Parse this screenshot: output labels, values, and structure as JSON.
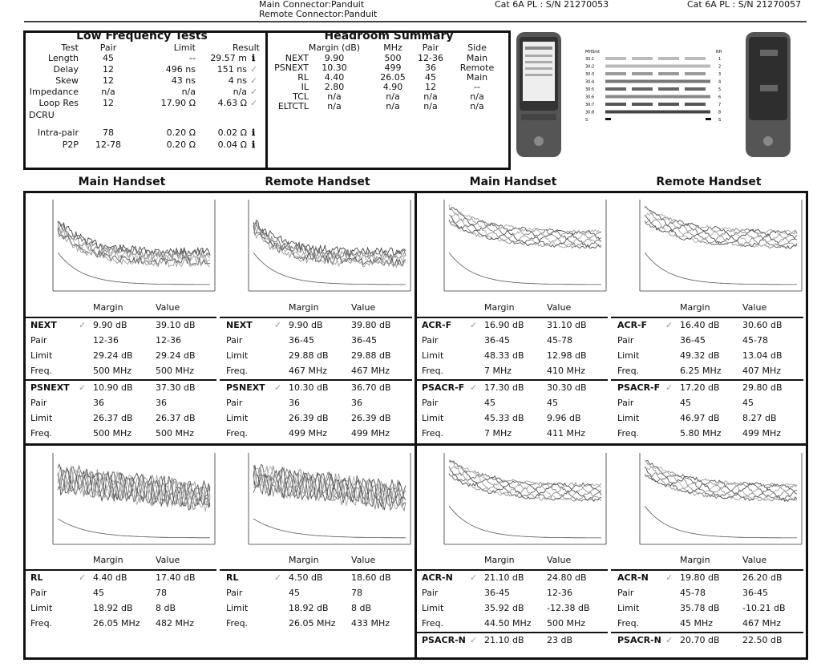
{
  "header": {
    "main_connector": "Main Connector:Panduit",
    "remote_connector": "Remote Connector:Panduit",
    "main_sn": "Cat 6A PL : S/N 21270053",
    "remote_sn": "Cat 6A PL : S/N 21270057"
  },
  "low_freq": {
    "title": "Low Frequency Tests",
    "cols": [
      "Test",
      "Pair",
      "Limit",
      "Result"
    ],
    "rows": [
      {
        "test": "Length",
        "pair": "45",
        "limit": "--",
        "result": "29.57 m",
        "icon": "info"
      },
      {
        "test": "Delay",
        "pair": "12",
        "limit": "496 ns",
        "result": "151 ns",
        "icon": "check"
      },
      {
        "test": "Skew",
        "pair": "12",
        "limit": "43 ns",
        "result": "4 ns",
        "icon": "check"
      },
      {
        "test": "Impedance",
        "pair": "n/a",
        "limit": "n/a",
        "result": "n/a",
        "icon": "check"
      },
      {
        "test": "Loop Res",
        "pair": "12",
        "limit": "17.90 Ω",
        "result": "4.63 Ω",
        "icon": "check"
      }
    ],
    "dcru_label": "DCRU",
    "dcru_rows": [
      {
        "test": "Intra-pair",
        "pair": "78",
        "limit": "0.20 Ω",
        "result": "0.02 Ω",
        "icon": "info"
      },
      {
        "test": "P2P",
        "pair": "12-78",
        "limit": "0.20 Ω",
        "result": "0.04 Ω",
        "icon": "info"
      }
    ]
  },
  "headroom": {
    "title": "Headroom Summary",
    "cols": [
      "Margin (dB)",
      "MHz",
      "Pair",
      "Side"
    ],
    "rows": [
      {
        "test": "NEXT",
        "margin": "9.90",
        "mhz": "500",
        "pair": "12-36",
        "side": "Main"
      },
      {
        "test": "PSNEXT",
        "margin": "10.30",
        "mhz": "499",
        "pair": "36",
        "side": "Remote"
      },
      {
        "test": "RL",
        "margin": "4.40",
        "mhz": "26.05",
        "pair": "45",
        "side": "Main"
      },
      {
        "test": "IL",
        "margin": "2.80",
        "mhz": "4.90",
        "pair": "12",
        "side": "--"
      },
      {
        "test": "TCL",
        "margin": "n/a",
        "mhz": "n/a",
        "pair": "n/a",
        "side": "n/a"
      },
      {
        "test": "ELTCTL",
        "margin": "n/a",
        "mhz": "n/a",
        "pair": "n/a",
        "side": "n/a"
      }
    ]
  },
  "wiremap": {
    "left_head": "MHSmt",
    "right_head": "RH",
    "rows": [
      {
        "l": "30:1",
        "r": "1"
      },
      {
        "l": "30:2",
        "r": "2"
      },
      {
        "l": "30:3",
        "r": "3"
      },
      {
        "l": "30:4",
        "r": "4"
      },
      {
        "l": "30:5",
        "r": "5"
      },
      {
        "l": "30:6",
        "r": "6"
      },
      {
        "l": "30:7",
        "r": "7"
      },
      {
        "l": "30:8",
        "r": "8"
      },
      {
        "l": "S",
        "r": "S"
      }
    ]
  },
  "handsets": [
    "Main Handset",
    "Remote Handset",
    "Main Handset",
    "Remote Handset"
  ],
  "col_labels": {
    "margin": "Margin",
    "value": "Value"
  },
  "panels": [
    {
      "tests": [
        {
          "name": "NEXT",
          "margin": "9.90 dB",
          "value": "39.10 dB",
          "pair": [
            "12-36",
            "12-36"
          ],
          "limit": [
            "29.24 dB",
            "29.24 dB"
          ],
          "freq": [
            "500 MHz",
            "500 MHz"
          ]
        },
        {
          "name": "PSNEXT",
          "margin": "10.90 dB",
          "value": "37.30 dB",
          "pair": [
            "36",
            "36"
          ],
          "limit": [
            "26.37 dB",
            "26.37 dB"
          ],
          "freq": [
            "500 MHz",
            "500 MHz"
          ]
        }
      ]
    },
    {
      "tests": [
        {
          "name": "NEXT",
          "margin": "9.90 dB",
          "value": "39.80 dB",
          "pair": [
            "36-45",
            "36-45"
          ],
          "limit": [
            "29.88 dB",
            "29.88 dB"
          ],
          "freq": [
            "467 MHz",
            "467 MHz"
          ]
        },
        {
          "name": "PSNEXT",
          "margin": "10.30 dB",
          "value": "36.70 dB",
          "pair": [
            "36",
            "36"
          ],
          "limit": [
            "26.39 dB",
            "26.39 dB"
          ],
          "freq": [
            "499 MHz",
            "499 MHz"
          ]
        }
      ]
    },
    {
      "tests": [
        {
          "name": "ACR-F",
          "margin": "16.90 dB",
          "value": "31.10 dB",
          "pair": [
            "36-45",
            "45-78"
          ],
          "limit": [
            "48.33 dB",
            "12.98 dB"
          ],
          "freq": [
            "7 MHz",
            "410 MHz"
          ]
        },
        {
          "name": "PSACR-F",
          "margin": "17.30 dB",
          "value": "30.30 dB",
          "pair": [
            "45",
            "45"
          ],
          "limit": [
            "45.33 dB",
            "9.96 dB"
          ],
          "freq": [
            "7 MHz",
            "411 MHz"
          ]
        }
      ]
    },
    {
      "tests": [
        {
          "name": "ACR-F",
          "margin": "16.40 dB",
          "value": "30.60 dB",
          "pair": [
            "36-45",
            "45-78"
          ],
          "limit": [
            "49.32 dB",
            "13.04 dB"
          ],
          "freq": [
            "6.25 MHz",
            "407 MHz"
          ]
        },
        {
          "name": "PSACR-F",
          "margin": "17.20 dB",
          "value": "29.80 dB",
          "pair": [
            "45",
            "45"
          ],
          "limit": [
            "46.97 dB",
            "8.27 dB"
          ],
          "freq": [
            "5.80 MHz",
            "499 MHz"
          ]
        }
      ]
    },
    {
      "tests": [
        {
          "name": "RL",
          "margin": "4.40 dB",
          "value": "17.40 dB",
          "pair": [
            "45",
            "78"
          ],
          "limit": [
            "18.92 dB",
            "8 dB"
          ],
          "freq": [
            "26.05 MHz",
            "482 MHz"
          ]
        }
      ]
    },
    {
      "tests": [
        {
          "name": "RL",
          "margin": "4.50 dB",
          "value": "18.60 dB",
          "pair": [
            "45",
            "78"
          ],
          "limit": [
            "18.92 dB",
            "8 dB"
          ],
          "freq": [
            "26.05 MHz",
            "433 MHz"
          ]
        }
      ]
    },
    {
      "tests": [
        {
          "name": "ACR-N",
          "margin": "21.10 dB",
          "value": "24.80 dB",
          "pair": [
            "36-45",
            "12-36"
          ],
          "limit": [
            "35.92 dB",
            "-12.38 dB"
          ],
          "freq": [
            "44.50 MHz",
            "500 MHz"
          ]
        },
        {
          "name": "PSACR-N",
          "margin": "21.10 dB",
          "value": "23 dB",
          "pair": [
            "",
            ""
          ],
          "limit": [
            "",
            ""
          ],
          "freq": [
            "",
            ""
          ]
        }
      ]
    },
    {
      "tests": [
        {
          "name": "ACR-N",
          "margin": "19.80 dB",
          "value": "26.20 dB",
          "pair": [
            "45-78",
            "36-45"
          ],
          "limit": [
            "35.78 dB",
            "-10.21 dB"
          ],
          "freq": [
            "45 MHz",
            "467 MHz"
          ]
        },
        {
          "name": "PSACR-N",
          "margin": "20.70 dB",
          "value": "22.50 dB",
          "pair": [
            "",
            ""
          ],
          "limit": [
            "",
            ""
          ],
          "freq": [
            "",
            ""
          ]
        }
      ]
    }
  ],
  "row_labels": {
    "pair": "Pair",
    "limit": "Limit",
    "freq": "Freq."
  }
}
